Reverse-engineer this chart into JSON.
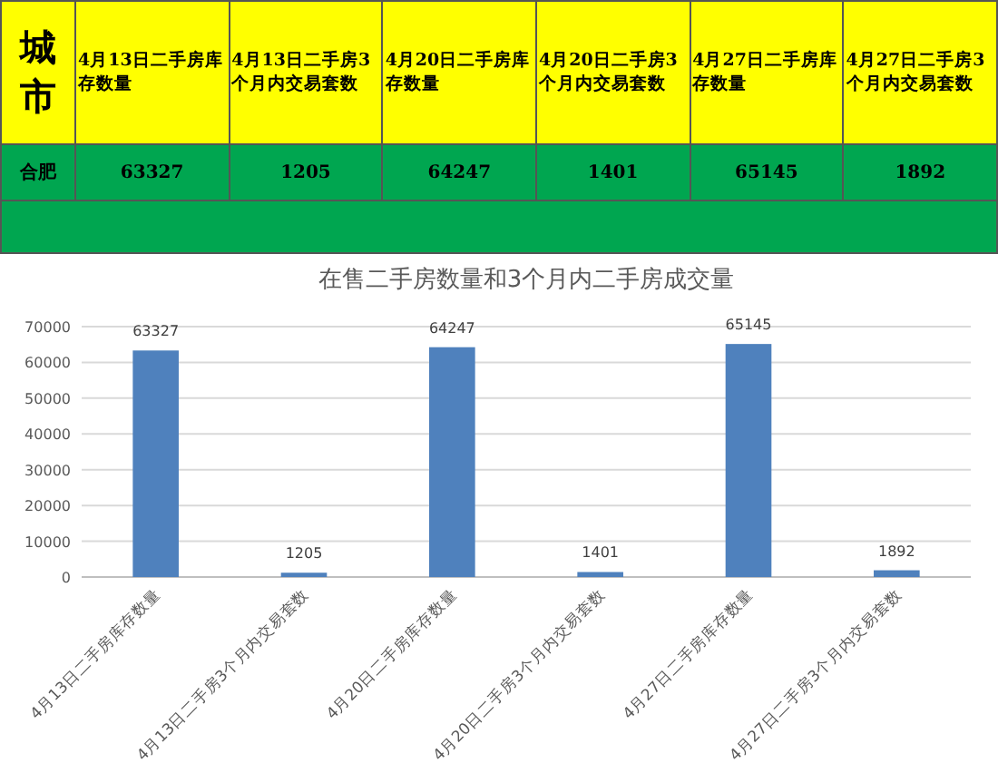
{
  "chart_data": [
    {
      "type": "other",
      "categories": [
        "4月13日二手房库存数量",
        "4月13日二手房3个月内交易套数",
        "4月20日二手房库存数量",
        "4月20日二手房3个月内交易套数",
        "4月27日二手房库存数量",
        "4月27日二手房3个月内交易套数"
      ],
      "values": [
        63327,
        1205,
        64247,
        1401,
        65145,
        1892
      ],
      "data_labels": true,
      "annotations": [
        "城市",
        "合肥"
      ]
    },
    {
      "type": "bar",
      "title": "在售二手房数量和3个月内二手房成交量",
      "categories": [
        "4月13日二手房库存数量",
        "4月13日二手房3个月内交易套数",
        "4月20日二手房库存数量",
        "4月20日二手房3个月内交易套数",
        "4月27日二手房库存数量",
        "4月27日二手房3个月内交易套数"
      ],
      "values": [
        63327,
        1205,
        64247,
        1401,
        65145,
        1892
      ],
      "color": "#4f81bd",
      "data_labels": true,
      "ylim": [
        0,
        70000
      ],
      "yticks": [
        0,
        10000,
        20000,
        30000,
        40000,
        50000,
        60000,
        70000
      ],
      "grid": "y"
    }
  ]
}
